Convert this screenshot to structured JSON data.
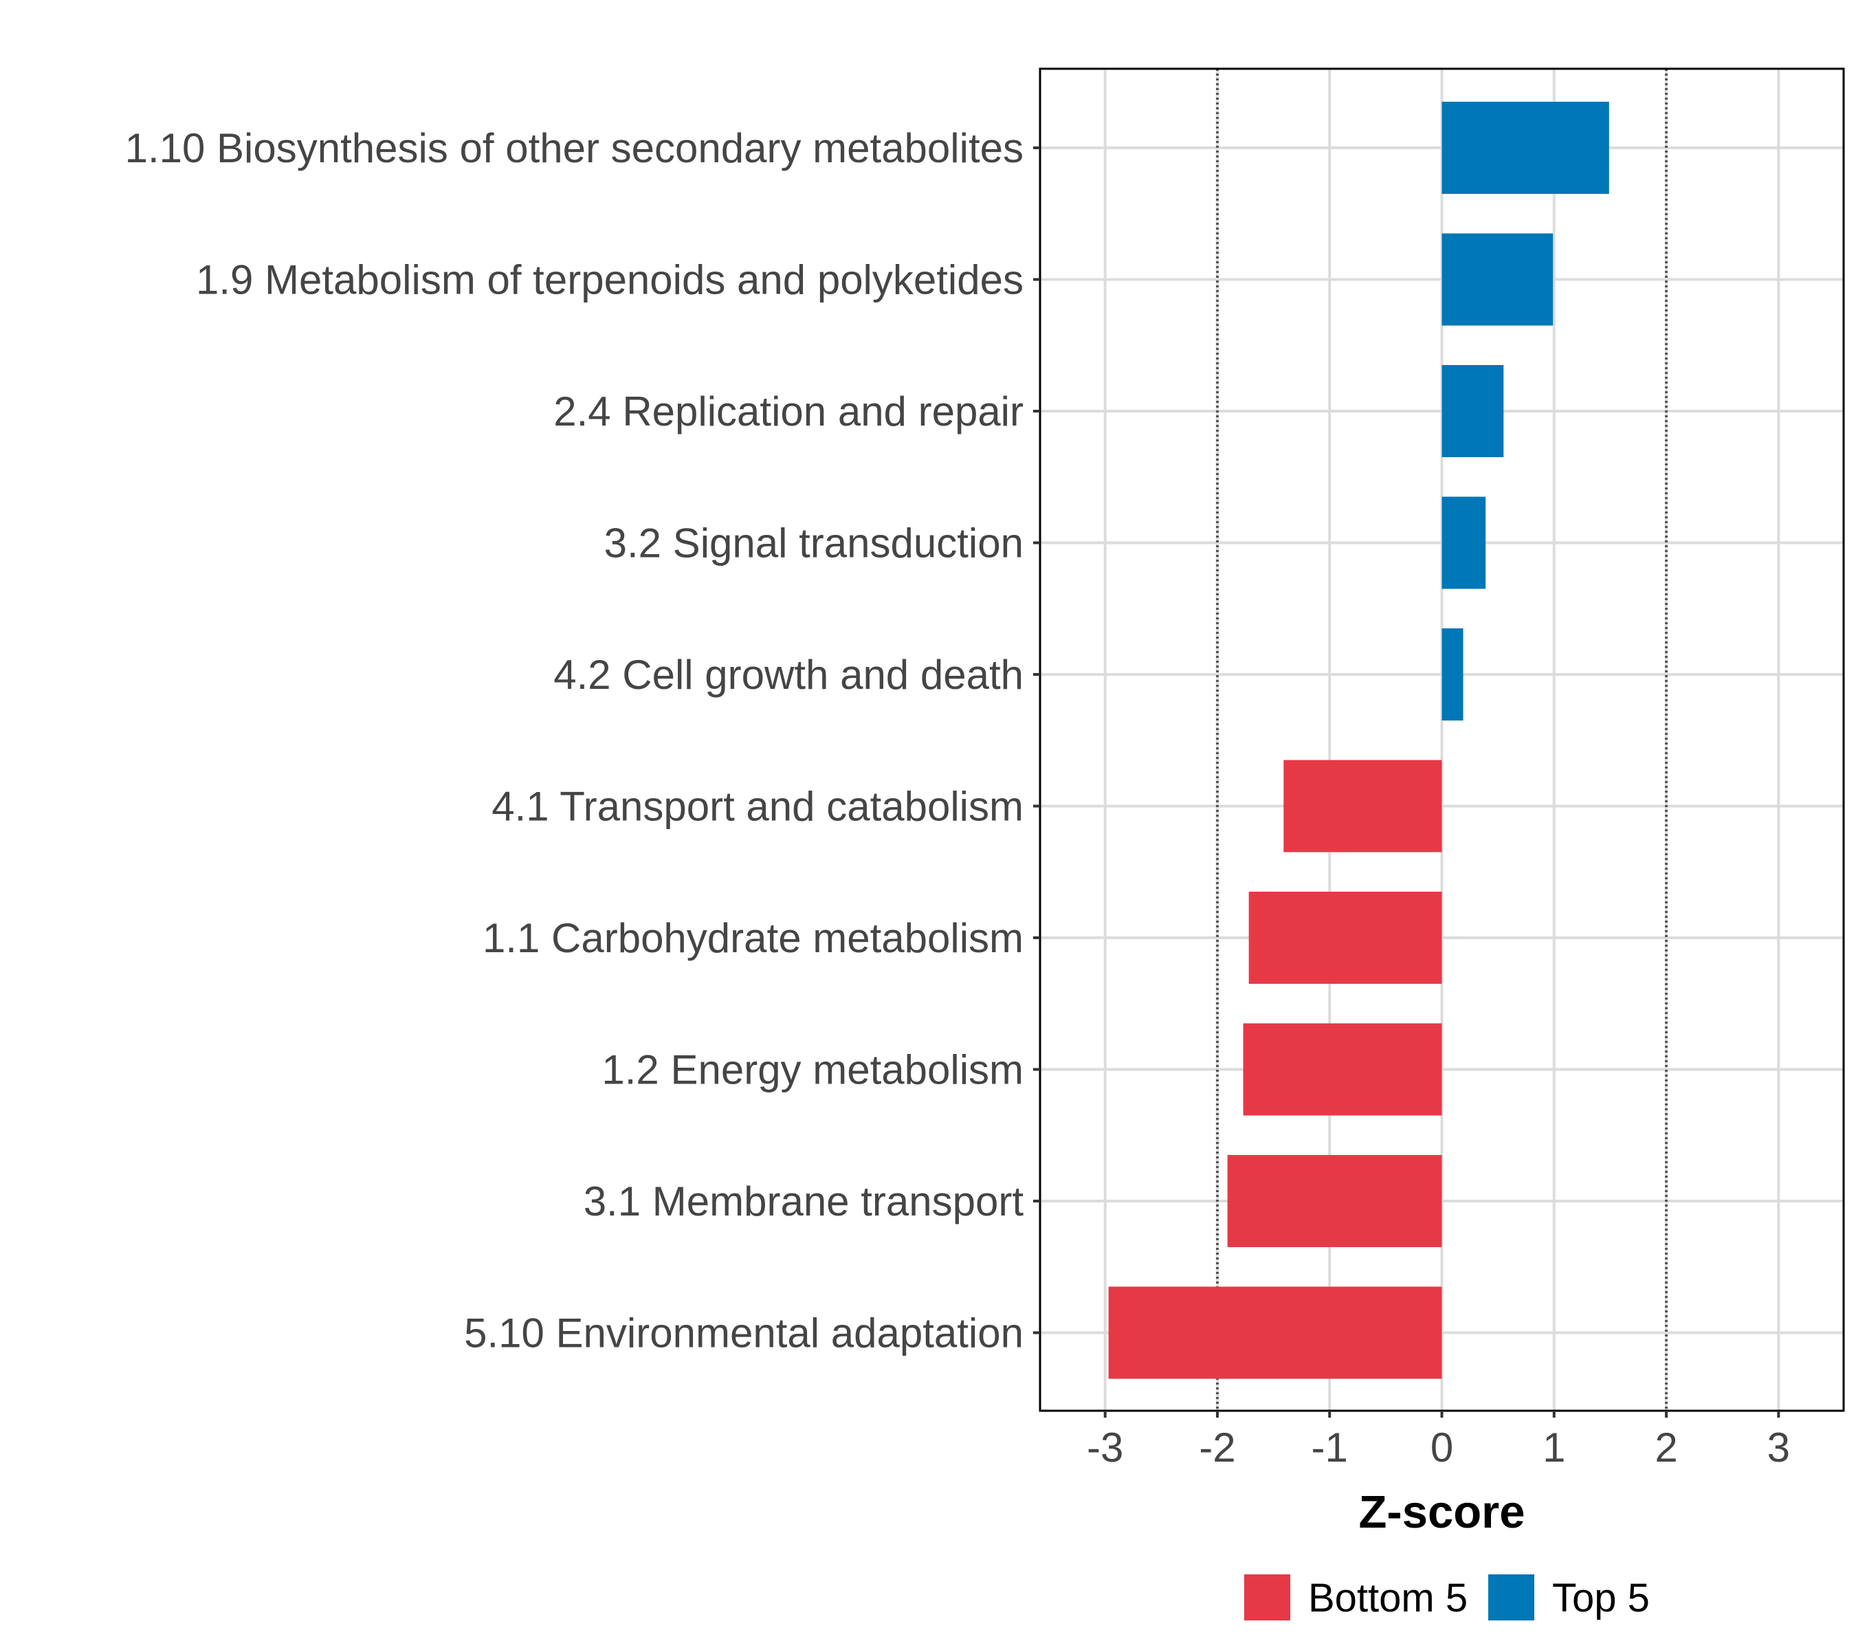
{
  "chart_data": {
    "type": "bar",
    "orientation": "horizontal",
    "categories": [
      "1.10 Biosynthesis of other secondary metabolites",
      "1.9 Metabolism of terpenoids and polyketides",
      "2.4 Replication and repair",
      "3.2 Signal transduction",
      "4.2 Cell growth and death",
      "4.1 Transport and catabolism",
      "1.1 Carbohydrate metabolism",
      "1.2 Energy metabolism",
      "3.1 Membrane transport",
      "5.10 Environmental adaptation"
    ],
    "values": [
      1.49,
      0.99,
      0.55,
      0.39,
      0.19,
      -1.41,
      -1.72,
      -1.77,
      -1.91,
      -2.97
    ],
    "groups": [
      "Top 5",
      "Top 5",
      "Top 5",
      "Top 5",
      "Top 5",
      "Bottom 5",
      "Bottom 5",
      "Bottom 5",
      "Bottom 5",
      "Bottom 5"
    ],
    "xlabel": "Z-score",
    "ylabel": "",
    "xlim": [
      -3.58,
      3.58
    ],
    "xticks": [
      -3,
      -2,
      -1,
      0,
      1,
      2,
      3
    ],
    "xtick_labels": [
      "-3",
      "-2",
      "-1",
      "0",
      "1",
      "2",
      "3"
    ],
    "reference_lines": [
      -2,
      2
    ],
    "grid": true,
    "legend": {
      "position": "bottom",
      "entries": [
        {
          "label": "Bottom 5",
          "color": "#E63946"
        },
        {
          "label": "Top 5",
          "color": "#0077B6"
        }
      ]
    },
    "colors": {
      "Bottom 5": "#E63946",
      "Top 5": "#0077B6"
    }
  }
}
